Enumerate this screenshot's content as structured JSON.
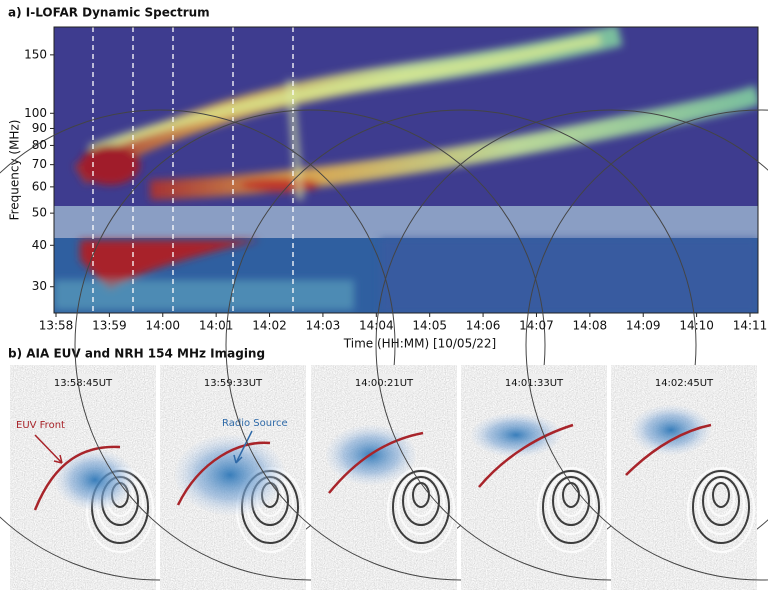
{
  "panel_a": {
    "title": "a) I-LOFAR Dynamic Spectrum",
    "y_label": "Frequency (MHz)",
    "x_label": "Time (HH:MM) [10/05/22]",
    "log_scale": true,
    "ylim": [
      25,
      182
    ],
    "yticks": [
      30,
      40,
      50,
      60,
      70,
      80,
      90,
      100,
      150
    ],
    "xticks": [
      "13:58",
      "13:59",
      "14:00",
      "14:01",
      "14:02",
      "14:03",
      "14:04",
      "14:05",
      "14:06",
      "14:07",
      "14:08",
      "14:09",
      "14:10",
      "14:11"
    ]
  },
  "panel_b": {
    "title": "b) AIA EUV and NRH 154 MHz Imaging",
    "frames": [
      {
        "time": "13:58:45UT",
        "annotation": "EUV Front"
      },
      {
        "time": "13:59:33UT",
        "annotation": "Radio Source"
      },
      {
        "time": "14:00:21UT"
      },
      {
        "time": "14:01:33UT"
      },
      {
        "time": "14:02:45UT"
      }
    ]
  }
}
